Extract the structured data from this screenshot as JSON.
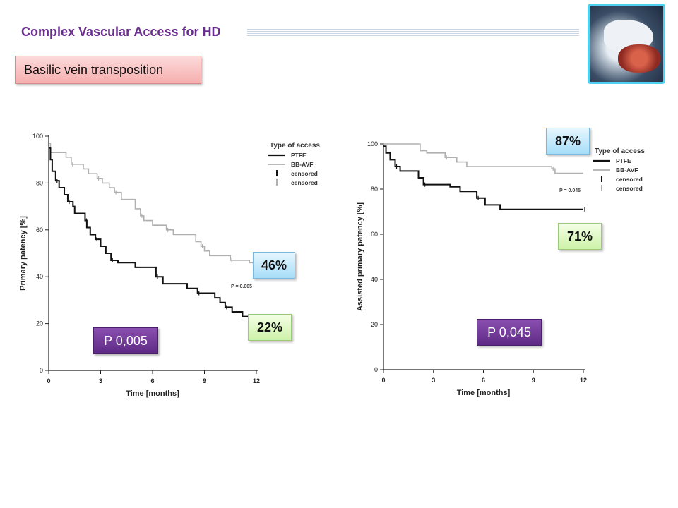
{
  "slide": {
    "title": "Complex Vascular Access for HD",
    "subtitle": "Basilic vein transposition"
  },
  "photo": {
    "icon": "surgery-photo"
  },
  "annotations": {
    "left_bbavf": "46%",
    "left_ptfe": "22%",
    "left_p": "P 0,005",
    "right_bbavf": "87%",
    "right_ptfe": "71%",
    "right_p": "P 0,045"
  },
  "chart_data": [
    {
      "type": "line",
      "xlabel": "Time [months]",
      "ylabel": "Primary patency [%]",
      "xlim": [
        0,
        12
      ],
      "ylim": [
        0,
        100
      ],
      "xticks": [
        "0",
        "3",
        "6",
        "9",
        "12"
      ],
      "yticks": [
        "0",
        "20",
        "40",
        "60",
        "80",
        "100"
      ],
      "legend_title": "Type of access",
      "legend": [
        "PTFE",
        "BB-AVF",
        "censored",
        "censored"
      ],
      "p_value_label": "P = 0.005",
      "series": [
        {
          "name": "PTFE",
          "color": "#111111",
          "points": [
            [
              0,
              95
            ],
            [
              0.1,
              90
            ],
            [
              0.2,
              85
            ],
            [
              0.4,
              81
            ],
            [
              0.6,
              78
            ],
            [
              0.9,
              75
            ],
            [
              1.1,
              72
            ],
            [
              1.4,
              70
            ],
            [
              1.5,
              67
            ],
            [
              2.1,
              64
            ],
            [
              2.2,
              61
            ],
            [
              2.4,
              58
            ],
            [
              2.7,
              56
            ],
            [
              3.0,
              53
            ],
            [
              3.3,
              50
            ],
            [
              3.6,
              47
            ],
            [
              4.0,
              46
            ],
            [
              5.0,
              44
            ],
            [
              6.2,
              40
            ],
            [
              6.6,
              37
            ],
            [
              8.0,
              35
            ],
            [
              8.6,
              33
            ],
            [
              9.6,
              31
            ],
            [
              9.9,
              29
            ],
            [
              10.2,
              27
            ],
            [
              10.6,
              25
            ],
            [
              11.2,
              23
            ],
            [
              12,
              22
            ]
          ]
        },
        {
          "name": "BB-AVF",
          "color": "#b0b0b0",
          "points": [
            [
              0,
              97
            ],
            [
              0.1,
              93
            ],
            [
              1.0,
              91
            ],
            [
              1.3,
              88
            ],
            [
              2.0,
              86
            ],
            [
              2.3,
              84
            ],
            [
              2.8,
              82
            ],
            [
              3.1,
              80
            ],
            [
              3.5,
              78
            ],
            [
              3.8,
              76
            ],
            [
              4.2,
              73
            ],
            [
              5.0,
              69
            ],
            [
              5.3,
              66
            ],
            [
              5.5,
              64
            ],
            [
              6.0,
              62
            ],
            [
              6.8,
              60
            ],
            [
              7.2,
              58
            ],
            [
              8.5,
              55
            ],
            [
              8.8,
              53
            ],
            [
              9.0,
              51
            ],
            [
              9.3,
              49
            ],
            [
              10.5,
              47
            ],
            [
              11.6,
              46
            ],
            [
              12,
              46
            ]
          ]
        }
      ]
    },
    {
      "type": "line",
      "xlabel": "Time [months]",
      "ylabel": "Assisted primary patency [%]",
      "xlim": [
        0,
        12
      ],
      "ylim": [
        0,
        100
      ],
      "xticks": [
        "0",
        "3",
        "6",
        "9",
        "12"
      ],
      "yticks": [
        "0",
        "20",
        "40",
        "60",
        "80",
        "100"
      ],
      "legend_title": "Type of access",
      "legend": [
        "PTFE",
        "BB-AVF",
        "censored",
        "censored"
      ],
      "p_value_label": "P = 0.045",
      "series": [
        {
          "name": "PTFE",
          "color": "#111111",
          "points": [
            [
              0,
              99
            ],
            [
              0.15,
              96
            ],
            [
              0.4,
              93
            ],
            [
              0.7,
              90
            ],
            [
              1.0,
              88
            ],
            [
              2.1,
              85
            ],
            [
              2.4,
              82
            ],
            [
              4.0,
              81
            ],
            [
              4.6,
              79
            ],
            [
              5.6,
              76
            ],
            [
              6.1,
              73
            ],
            [
              7.0,
              71
            ],
            [
              12,
              71
            ]
          ]
        },
        {
          "name": "BB-AVF",
          "color": "#b0b0b0",
          "points": [
            [
              0,
              100
            ],
            [
              2.2,
              97
            ],
            [
              2.6,
              96
            ],
            [
              3.7,
              94
            ],
            [
              4.4,
              92
            ],
            [
              5.0,
              90
            ],
            [
              10.1,
              89
            ],
            [
              10.3,
              87
            ],
            [
              12,
              87
            ]
          ]
        }
      ]
    }
  ]
}
